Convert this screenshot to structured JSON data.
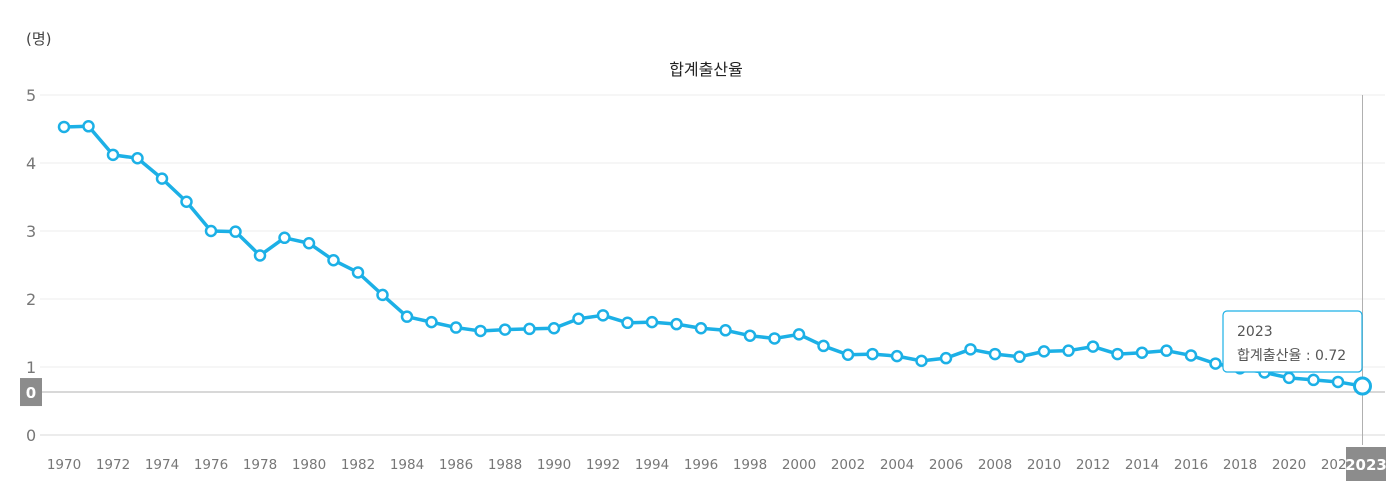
{
  "chart_data": {
    "type": "line",
    "title": "합계출산율",
    "unit": "(명)",
    "ylim": [
      0,
      5
    ],
    "yticks": [
      "0",
      "1",
      "2",
      "3",
      "4",
      "5"
    ],
    "x": [
      1970,
      1971,
      1972,
      1973,
      1974,
      1975,
      1976,
      1977,
      1978,
      1979,
      1980,
      1981,
      1982,
      1983,
      1984,
      1985,
      1986,
      1987,
      1988,
      1989,
      1990,
      1991,
      1992,
      1993,
      1994,
      1995,
      1996,
      1997,
      1998,
      1999,
      2000,
      2001,
      2002,
      2003,
      2004,
      2005,
      2006,
      2007,
      2008,
      2009,
      2010,
      2011,
      2012,
      2013,
      2014,
      2015,
      2016,
      2017,
      2018,
      2019,
      2020,
      2021,
      2022,
      2023
    ],
    "xtick_labels": [
      "1970",
      "1972",
      "1974",
      "1976",
      "1978",
      "1980",
      "1982",
      "1984",
      "1986",
      "1988",
      "1990",
      "1992",
      "1994",
      "1996",
      "1998",
      "2000",
      "2002",
      "2004",
      "2006",
      "2008",
      "2010",
      "2012",
      "2014",
      "2016",
      "2018",
      "2020",
      "2022"
    ],
    "series": [
      {
        "name": "합계출산율",
        "color": "#1cb0e6",
        "values": [
          4.53,
          4.54,
          4.12,
          4.07,
          3.77,
          3.43,
          3.0,
          2.99,
          2.64,
          2.9,
          2.82,
          2.57,
          2.39,
          2.06,
          1.74,
          1.66,
          1.58,
          1.53,
          1.55,
          1.56,
          1.57,
          1.71,
          1.76,
          1.65,
          1.66,
          1.63,
          1.57,
          1.54,
          1.46,
          1.42,
          1.48,
          1.31,
          1.18,
          1.19,
          1.16,
          1.09,
          1.13,
          1.26,
          1.19,
          1.15,
          1.23,
          1.24,
          1.3,
          1.19,
          1.21,
          1.24,
          1.17,
          1.05,
          0.98,
          0.92,
          0.84,
          0.81,
          0.78,
          0.72
        ]
      }
    ],
    "grid": true,
    "crosshair": {
      "x_label": "2023",
      "y_label": "0"
    },
    "tooltip": {
      "title": "2023",
      "label": "합계출산율",
      "separator": " : ",
      "value": "0.72"
    }
  }
}
